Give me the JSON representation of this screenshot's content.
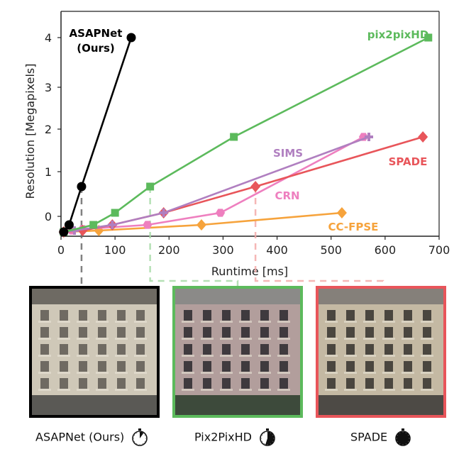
{
  "chart_data": {
    "type": "line",
    "xlabel": "Runtime [ms]",
    "ylabel": "Resolution [Megapixels]",
    "x_ticks": [
      0,
      100,
      200,
      300,
      400,
      500,
      600,
      700
    ],
    "y_ticks": [
      0,
      1,
      2,
      3,
      4
    ],
    "xlim": [
      0,
      700
    ],
    "grid": false,
    "series": [
      {
        "name": "ASAPNet (Ours)",
        "color": "#000000",
        "marker": "circle",
        "x": [
          5,
          15,
          38,
          130
        ],
        "y": [
          0.0,
          0.25,
          1.0,
          4.0
        ]
      },
      {
        "name": "pix2pixHD",
        "color": "#5cba5c",
        "marker": "square",
        "x": [
          5,
          60,
          100,
          165,
          320,
          680
        ],
        "y": [
          0.0,
          0.25,
          0.5,
          1.0,
          2.0,
          4.0
        ]
      },
      {
        "name": "SIMS",
        "color": "#b07fc0",
        "marker": "plus",
        "x": [
          5,
          25,
          95,
          190,
          570
        ],
        "y": [
          0.0,
          0.05,
          0.25,
          0.5,
          2.0
        ]
      },
      {
        "name": "SPADE",
        "color": "#e8555a",
        "marker": "diamond",
        "x": [
          5,
          40,
          95,
          190,
          360,
          670
        ],
        "y": [
          0.0,
          0.05,
          0.25,
          0.5,
          1.0,
          2.0
        ]
      },
      {
        "name": "CRN",
        "color": "#ee7fbf",
        "marker": "hexagon",
        "x": [
          5,
          20,
          40,
          160,
          295,
          560
        ],
        "y": [
          0.0,
          0.05,
          0.1,
          0.25,
          0.5,
          2.0
        ]
      },
      {
        "name": "CC-FPSE",
        "color": "#f6a33c",
        "marker": "diamond",
        "x": [
          5,
          70,
          260,
          520
        ],
        "y": [
          0.0,
          0.05,
          0.25,
          0.5
        ]
      }
    ]
  },
  "labels": {
    "asapnet_line1": "ASAPNet",
    "asapnet_line2": "(Ours)",
    "pix2pixhd": "pix2pixHD",
    "sims": "SIMS",
    "spade": "SPADE",
    "crn": "CRN",
    "ccfpse": "CC-FPSE"
  },
  "panels": [
    {
      "caption": "ASAPNet (Ours)",
      "border_color": "#000000",
      "clock_fill": 0.1
    },
    {
      "caption": "Pix2PixHD",
      "border_color": "#5cba5c",
      "clock_fill": 0.55
    },
    {
      "caption": "SPADE",
      "border_color": "#e8555a",
      "clock_fill": 1.0
    }
  ]
}
